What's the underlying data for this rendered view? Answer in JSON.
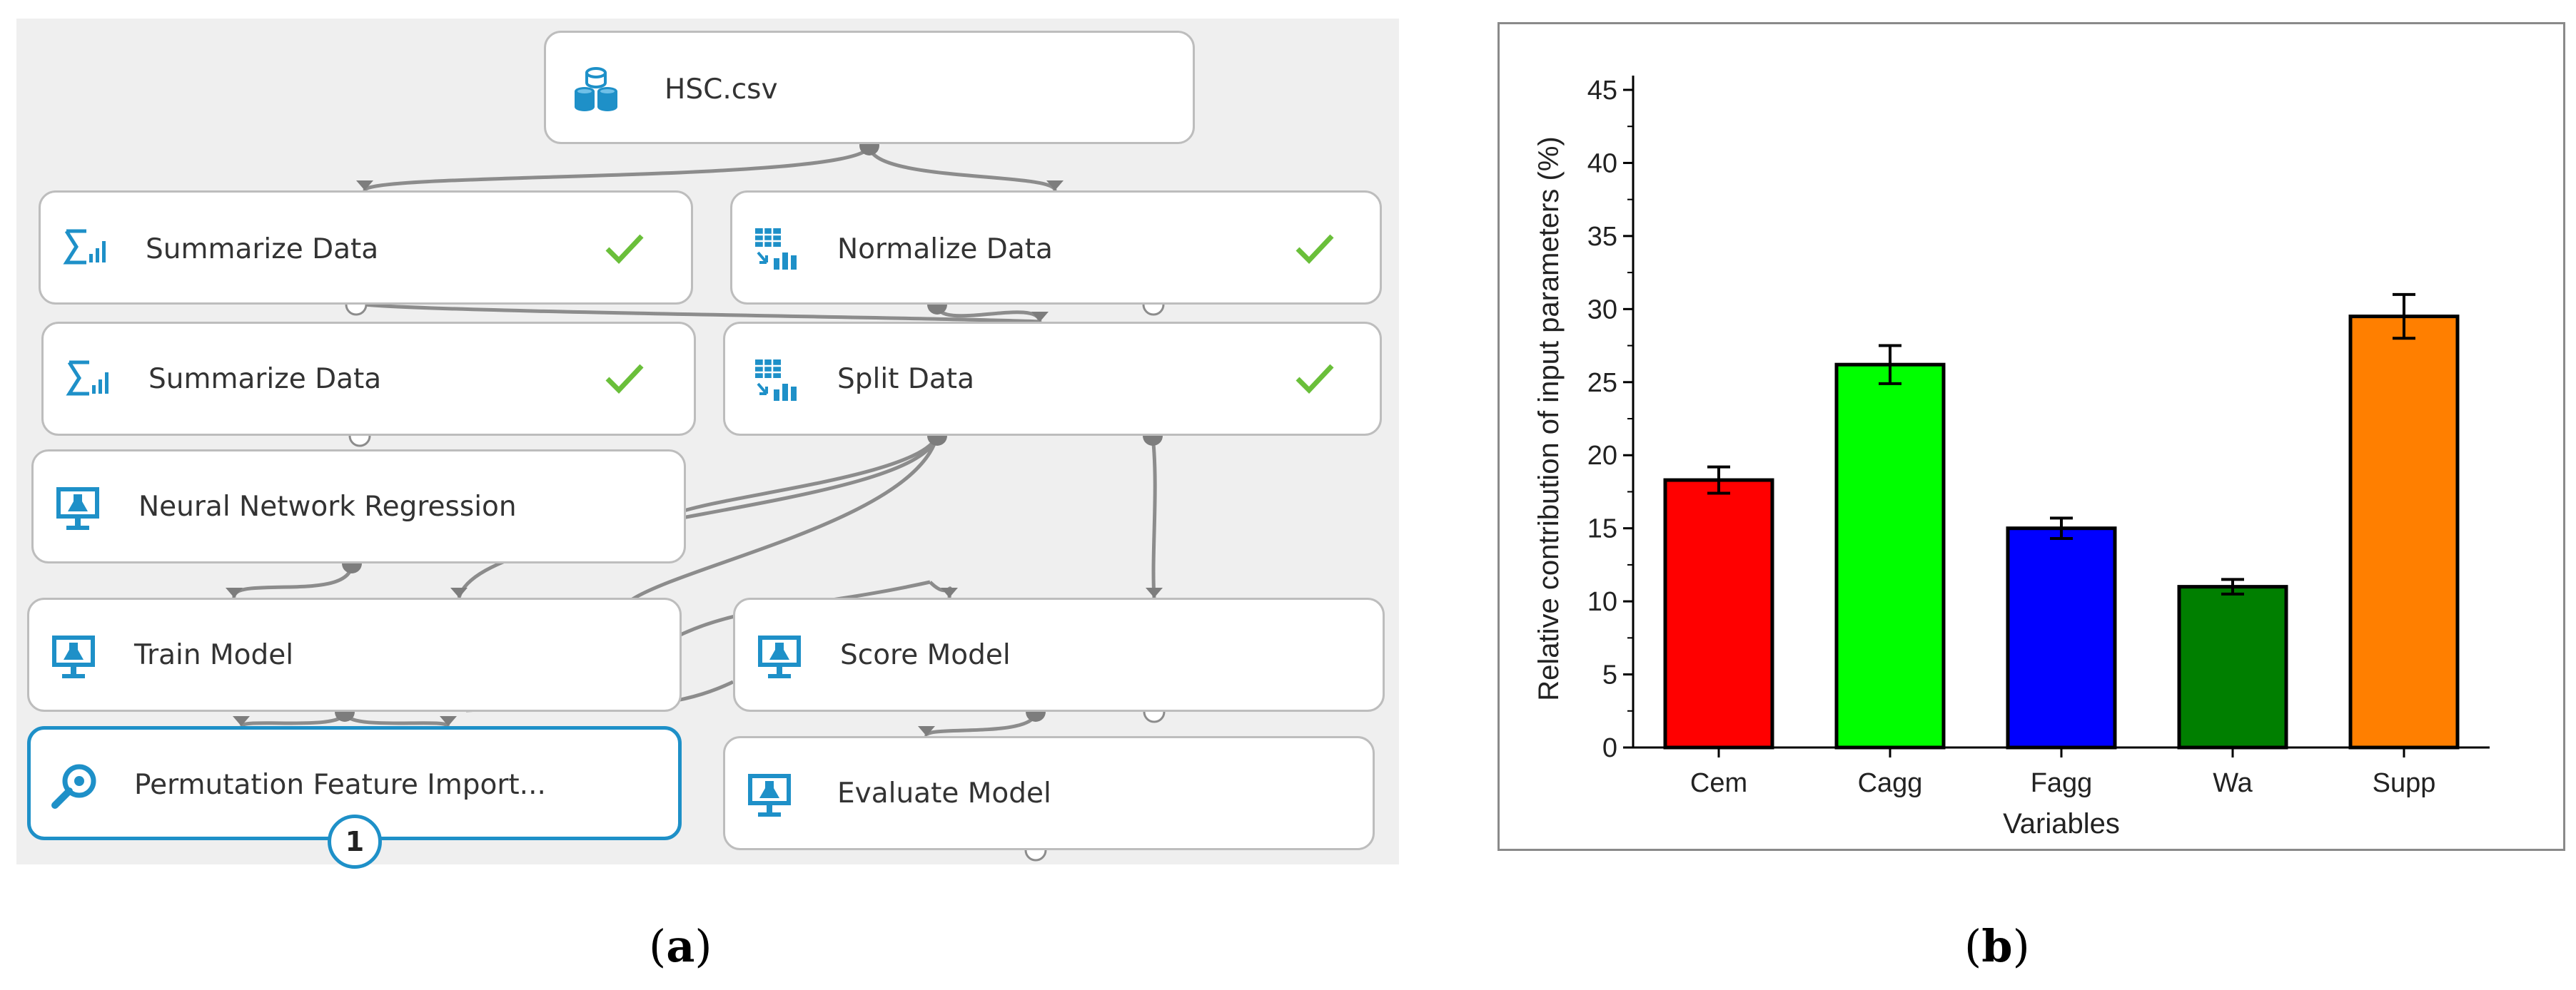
{
  "pipeline": {
    "nodes": [
      {
        "label": "HSC.csv",
        "icon": "dataset-icon",
        "check": false
      },
      {
        "label": "Summarize Data",
        "icon": "summarize-icon",
        "check": true
      },
      {
        "label": "Normalize Data",
        "icon": "grid-transform-icon",
        "check": true
      },
      {
        "label": "Summarize Data",
        "icon": "summarize-icon",
        "check": true
      },
      {
        "label": "Split Data",
        "icon": "grid-transform-icon",
        "check": true
      },
      {
        "label": "Neural Network Regression",
        "icon": "flask-monitor-icon",
        "check": false
      },
      {
        "label": "Train Model",
        "icon": "flask-monitor-icon",
        "check": false
      },
      {
        "label": "Score Model",
        "icon": "flask-monitor-icon",
        "check": false
      },
      {
        "label": "Permutation Feature Import...",
        "icon": "magnifier-icon",
        "check": false,
        "selected": true,
        "badge": "1"
      },
      {
        "label": "Evaluate Model",
        "icon": "flask-monitor-icon",
        "check": false
      }
    ],
    "colors": {
      "accent": "#1e90c8",
      "icon": "#1e90c8",
      "check": "#6abf3a",
      "wire": "#8c8c8c",
      "canvas": "#efefef"
    }
  },
  "captions": {
    "a": "a",
    "b": "b"
  },
  "chart_data": {
    "type": "bar",
    "categories": [
      "Cem",
      "Cagg",
      "Fagg",
      "Wa",
      "Supp"
    ],
    "values": [
      18.3,
      26.2,
      15.0,
      11.0,
      29.5
    ],
    "errors": [
      0.9,
      1.3,
      0.7,
      0.5,
      1.5
    ],
    "colors": [
      "#ff0000",
      "#00ff00",
      "#0000ff",
      "#007f00",
      "#ff7f00"
    ],
    "xlabel": "Variables",
    "ylabel": "Relative contribution of input parameters (%)",
    "ylim": [
      0,
      45
    ],
    "yticks": [
      0,
      5,
      10,
      15,
      20,
      25,
      30,
      35,
      40,
      45
    ],
    "grid": false
  }
}
